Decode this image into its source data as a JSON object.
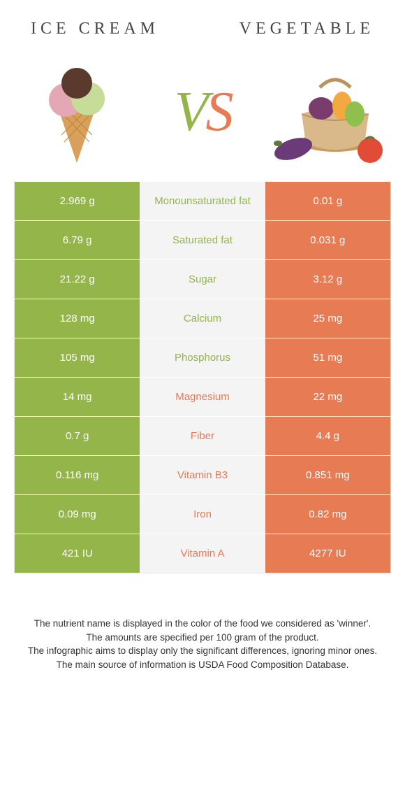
{
  "colors": {
    "left": "#93b54a",
    "right": "#e77b54",
    "mid_bg": "#f4f4f4",
    "border": "#e6e6e6",
    "text": "#333333"
  },
  "header": {
    "left_title": "ICE CREAM",
    "right_title": "VEGETABLE"
  },
  "vs": {
    "v_color": "#93b54a",
    "s_color": "#e77b54"
  },
  "rows": [
    {
      "left": "2.969 g",
      "label": "Monounsaturated fat",
      "right": "0.01 g",
      "winner": "left"
    },
    {
      "left": "6.79 g",
      "label": "Saturated fat",
      "right": "0.031 g",
      "winner": "left"
    },
    {
      "left": "21.22 g",
      "label": "Sugar",
      "right": "3.12 g",
      "winner": "left"
    },
    {
      "left": "128 mg",
      "label": "Calcium",
      "right": "25 mg",
      "winner": "left"
    },
    {
      "left": "105 mg",
      "label": "Phosphorus",
      "right": "51 mg",
      "winner": "left"
    },
    {
      "left": "14 mg",
      "label": "Magnesium",
      "right": "22 mg",
      "winner": "right"
    },
    {
      "left": "0.7 g",
      "label": "Fiber",
      "right": "4.4 g",
      "winner": "right"
    },
    {
      "left": "0.116 mg",
      "label": "Vitamin B3",
      "right": "0.851 mg",
      "winner": "right"
    },
    {
      "left": "0.09 mg",
      "label": "Iron",
      "right": "0.82 mg",
      "winner": "right"
    },
    {
      "left": "421 IU",
      "label": "Vitamin A",
      "right": "4277 IU",
      "winner": "right"
    }
  ],
  "footnotes": [
    "The nutrient name is displayed in the color of the food we considered as 'winner'.",
    "The amounts are specified per 100 gram of the product.",
    "The infographic aims to display only the significant differences, ignoring minor ones.",
    "The main source of information is USDA Food Composition Database."
  ]
}
